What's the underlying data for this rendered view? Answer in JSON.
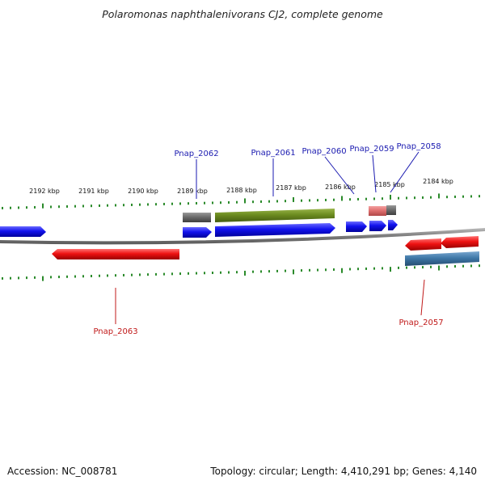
{
  "title": "Polaromonas naphthalenivorans CJ2, complete genome",
  "scale_labels": [
    "2192 kbp",
    "2191 kbp",
    "2190 kbp",
    "2189 kbp",
    "2188 kbp",
    "2187 kbp",
    "2186 kbp",
    "2185 kbp",
    "2184 kbp"
  ],
  "genes": {
    "top": [
      "Pnap_2062",
      "Pnap_2061",
      "Pnap_2060",
      "Pnap_2059",
      "Pnap_2058"
    ],
    "bottom": [
      "Pnap_2063",
      "Pnap_2057"
    ]
  },
  "colors": {
    "forward_cds": "#1010e0",
    "reverse_cds": "#e01010",
    "forward_label": "#1a1ab0",
    "reverse_label": "#c01818",
    "tick": "#2a8a2a",
    "backbone": "#8c8c8c",
    "gray_feature": "#6f6f6f",
    "olive_feature": "#6f8f22",
    "salmon_feature": "#e07070",
    "steel_feature": "#3f78a8"
  },
  "footer": {
    "accession": "Accession: NC_008781",
    "topology": "Topology: circular; Length: 4,410,291 bp; Genes: 4,140"
  }
}
